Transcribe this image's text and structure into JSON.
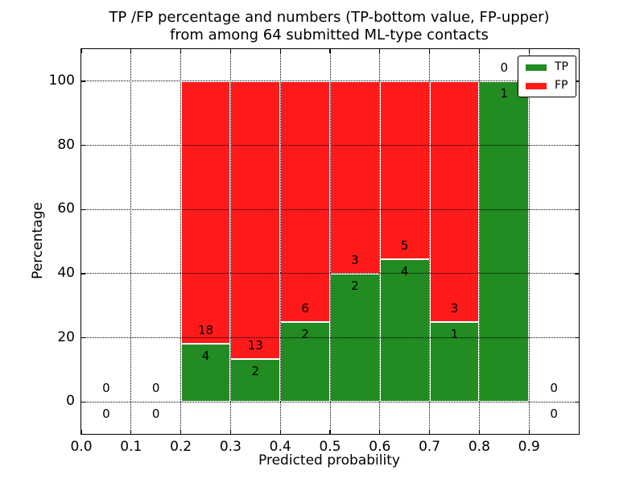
{
  "chart_data": {
    "type": "bar",
    "stacked": true,
    "normalized_to_percent": true,
    "title_lines": [
      "TP /FP percentage and numbers (TP-bottom value, FP-upper)",
      "from among 64 submitted ML-type contacts"
    ],
    "xlabel": "Predicted probability",
    "ylabel": "Percentage",
    "xlim": [
      0.0,
      1.0
    ],
    "ylim": [
      -10,
      110
    ],
    "xticks": [
      {
        "v": 0.0,
        "label": "0.0"
      },
      {
        "v": 0.1,
        "label": "0.1"
      },
      {
        "v": 0.2,
        "label": "0.2"
      },
      {
        "v": 0.3,
        "label": "0.3"
      },
      {
        "v": 0.4,
        "label": "0.4"
      },
      {
        "v": 0.5,
        "label": "0.5"
      },
      {
        "v": 0.6,
        "label": "0.6"
      },
      {
        "v": 0.7,
        "label": "0.7"
      },
      {
        "v": 0.8,
        "label": "0.8"
      },
      {
        "v": 0.9,
        "label": "0.9"
      }
    ],
    "yticks": [
      {
        "v": 0,
        "label": "0"
      },
      {
        "v": 20,
        "label": "20"
      },
      {
        "v": 40,
        "label": "40"
      },
      {
        "v": 60,
        "label": "60"
      },
      {
        "v": 80,
        "label": "80"
      },
      {
        "v": 100,
        "label": "100"
      }
    ],
    "grid": {
      "on": true,
      "style": "dotted",
      "color": "#000000",
      "above_bars": true
    },
    "colors": {
      "tp": "#228B22",
      "fp": "#FF1A1A"
    },
    "legend": {
      "position": "upper-right",
      "entries": [
        {
          "label": "TP",
          "color": "#228B22"
        },
        {
          "label": "FP",
          "color": "#FF1A1A"
        }
      ]
    },
    "total_contacts": 64,
    "bins": [
      {
        "x_range": [
          0.0,
          0.1
        ],
        "tp": 0,
        "fp": 0
      },
      {
        "x_range": [
          0.1,
          0.2
        ],
        "tp": 0,
        "fp": 0
      },
      {
        "x_range": [
          0.2,
          0.3
        ],
        "tp": 4,
        "fp": 18
      },
      {
        "x_range": [
          0.3,
          0.4
        ],
        "tp": 2,
        "fp": 13
      },
      {
        "x_range": [
          0.4,
          0.5
        ],
        "tp": 2,
        "fp": 6
      },
      {
        "x_range": [
          0.5,
          0.6
        ],
        "tp": 2,
        "fp": 3
      },
      {
        "x_range": [
          0.6,
          0.7
        ],
        "tp": 4,
        "fp": 5
      },
      {
        "x_range": [
          0.7,
          0.8
        ],
        "tp": 1,
        "fp": 3
      },
      {
        "x_range": [
          0.8,
          0.9
        ],
        "tp": 1,
        "fp": 0
      },
      {
        "x_range": [
          0.9,
          1.0
        ],
        "tp": 0,
        "fp": 0
      }
    ]
  }
}
